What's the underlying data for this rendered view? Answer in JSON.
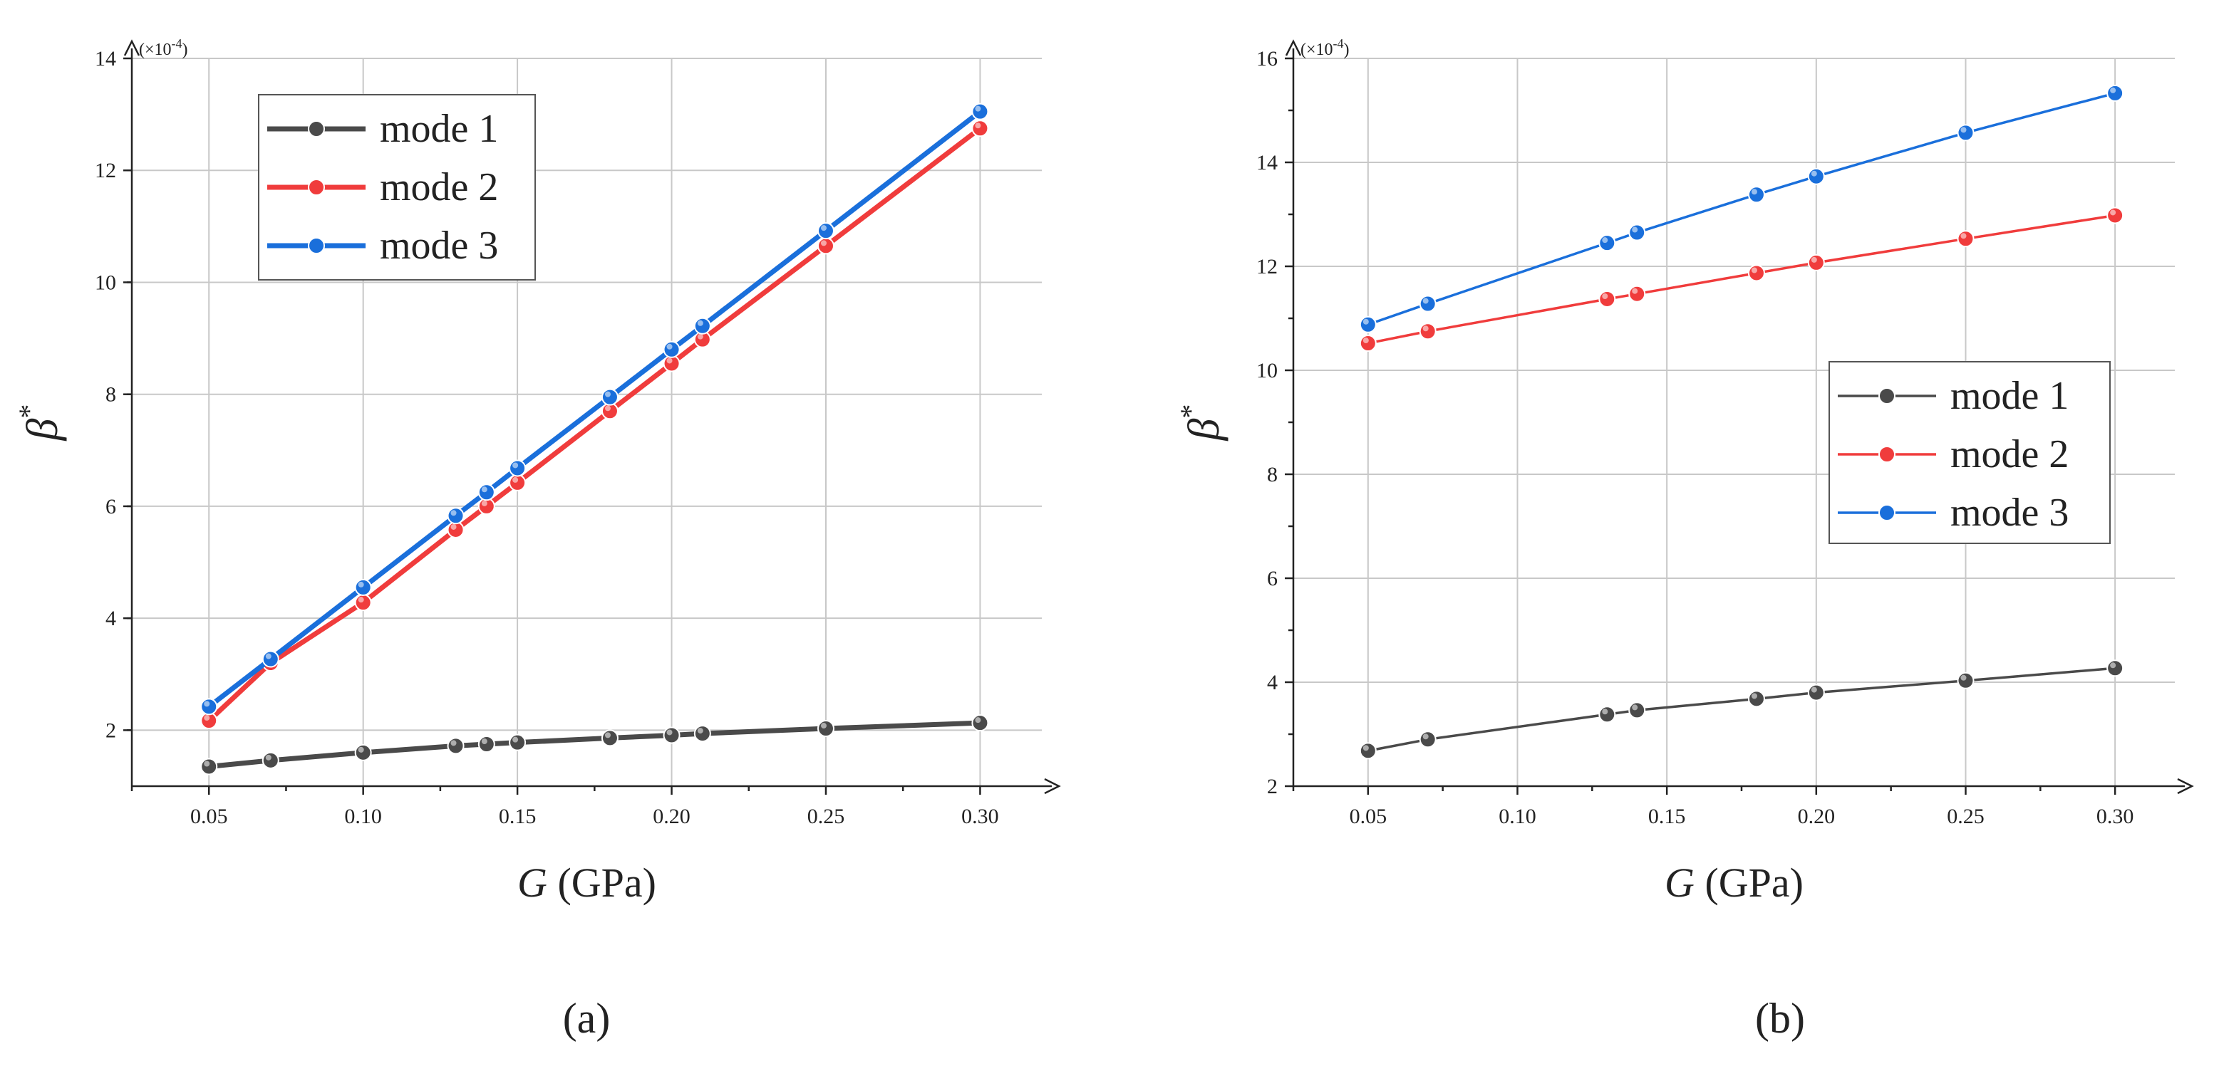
{
  "chart_data": [
    {
      "id": "a",
      "type": "line",
      "caption": "(a)",
      "xlabel_var": "G",
      "xlabel_unit": " (GPa)",
      "ylabel": "β",
      "ylabel_sup": "*",
      "y_exponent": "(×10",
      "y_exponent_power": "-4",
      "y_exponent_close": ")",
      "xlim": [
        0.025,
        0.32
      ],
      "ylim": [
        1,
        14
      ],
      "xticks": [
        0.05,
        0.1,
        0.15,
        0.2,
        0.25,
        0.3
      ],
      "xtick_labels": [
        "0.05",
        "0.10",
        "0.15",
        "0.20",
        "0.25",
        "0.30"
      ],
      "yticks": [
        2,
        4,
        6,
        8,
        10,
        12,
        14
      ],
      "ytick_labels": [
        "2",
        "4",
        "6",
        "8",
        "10",
        "12",
        "14"
      ],
      "legend_position": "top-left",
      "x": [
        0.05,
        0.07,
        0.1,
        0.13,
        0.14,
        0.15,
        0.18,
        0.2,
        0.21,
        0.25,
        0.3
      ],
      "series": [
        {
          "name": "mode 1",
          "color": "#4a4a4a",
          "values": [
            1.35,
            1.46,
            1.6,
            1.72,
            1.75,
            1.78,
            1.86,
            1.91,
            1.94,
            2.03,
            2.13
          ]
        },
        {
          "name": "mode 2",
          "color": "#f03c3c",
          "values": [
            2.17,
            3.2,
            4.28,
            5.58,
            6.0,
            6.42,
            7.7,
            8.55,
            8.98,
            10.65,
            12.75
          ]
        },
        {
          "name": "mode 3",
          "color": "#1a6fdb",
          "values": [
            2.42,
            3.27,
            4.55,
            5.83,
            6.25,
            6.68,
            7.95,
            8.8,
            9.22,
            10.92,
            13.05
          ]
        }
      ]
    },
    {
      "id": "b",
      "type": "line",
      "caption": "(b)",
      "xlabel_var": "G",
      "xlabel_unit": " (GPa)",
      "ylabel": "β",
      "ylabel_sup": "*",
      "y_exponent": "(×10",
      "y_exponent_power": "-4",
      "y_exponent_close": ")",
      "xlim": [
        0.025,
        0.32
      ],
      "ylim": [
        2,
        16
      ],
      "xticks": [
        0.05,
        0.1,
        0.15,
        0.2,
        0.25,
        0.3
      ],
      "xtick_labels": [
        "0.05",
        "0.10",
        "0.15",
        "0.20",
        "0.25",
        "0.30"
      ],
      "yticks": [
        2,
        4,
        6,
        8,
        10,
        12,
        14,
        16
      ],
      "ytick_labels": [
        "2",
        "4",
        "6",
        "8",
        "10",
        "12",
        "14",
        "16"
      ],
      "legend_position": "center-right",
      "x": [
        0.05,
        0.07,
        0.13,
        0.14,
        0.18,
        0.2,
        0.25,
        0.3
      ],
      "series": [
        {
          "name": "mode 1",
          "color": "#4a4a4a",
          "values": [
            2.68,
            2.9,
            3.38,
            3.46,
            3.68,
            3.8,
            4.03,
            4.27
          ]
        },
        {
          "name": "mode 2",
          "color": "#f03c3c",
          "values": [
            10.52,
            10.75,
            11.37,
            11.47,
            11.87,
            12.07,
            12.53,
            12.98
          ]
        },
        {
          "name": "mode 3",
          "color": "#1a6fdb",
          "values": [
            10.88,
            11.28,
            12.45,
            12.65,
            13.38,
            13.73,
            14.57,
            15.33
          ]
        }
      ]
    }
  ]
}
